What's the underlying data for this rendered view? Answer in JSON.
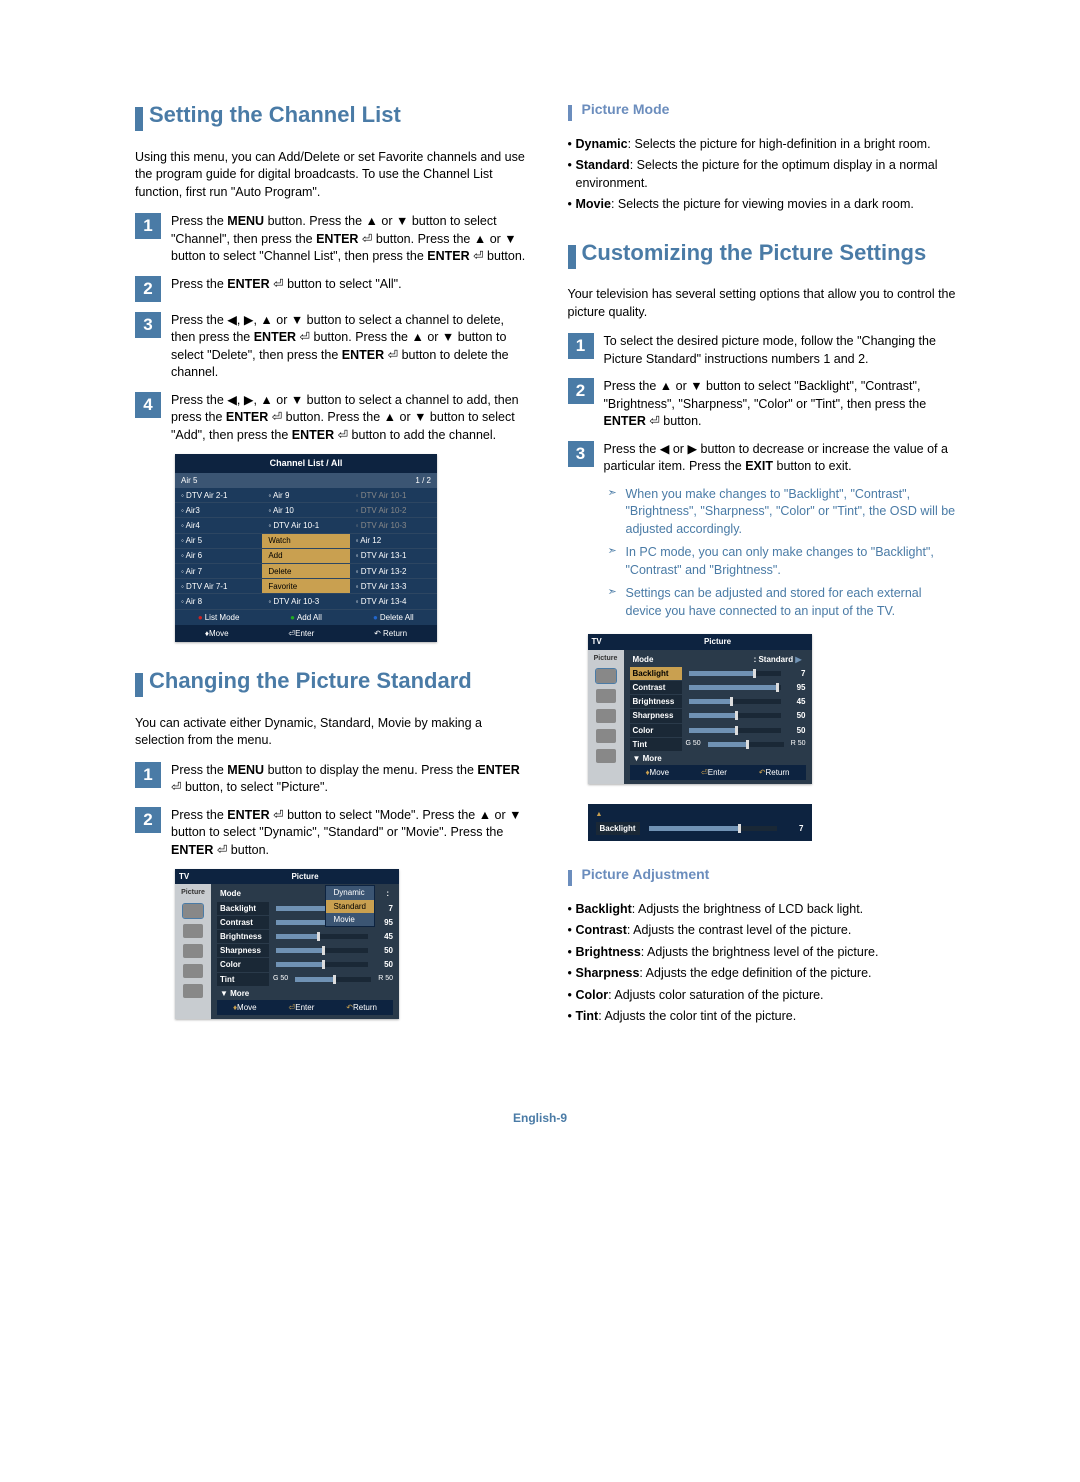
{
  "footer": "English-9",
  "left": {
    "s1": {
      "title": "Setting the Channel List",
      "intro": "Using this menu, you can Add/Delete or set Favorite channels and use the program guide for digital broadcasts. To use the Channel List function, first run \"Auto Program\".",
      "steps": [
        "Press the MENU button. Press the ▲ or ▼ button to select \"Channel\", then press the ENTER ⏎ button. Press the ▲ or ▼ button to select \"Channel List\", then press the ENTER ⏎ button.",
        "Press the ENTER ⏎ button to select \"All\".",
        "Press the ◀, ▶, ▲ or ▼ button to select a channel to delete, then press the ENTER ⏎ button. Press the ▲ or ▼ button to select \"Delete\", then press the ENTER ⏎ button to delete the channel.",
        "Press the ◀, ▶, ▲ or ▼ button to select a channel to add, then press the ENTER ⏎ button. Press the ▲ or ▼ button to select \"Add\", then press the ENTER ⏎ button to add the channel."
      ],
      "osd": {
        "title": "Channel List / All",
        "sub": "Air 5",
        "page": "1 / 2",
        "cols": [
          [
            "DTV Air 2-1",
            "Air3",
            "Air4",
            "Air 5",
            "Air 6",
            "Air 7",
            "DTV Air 7-1",
            "Air 8"
          ],
          [
            "Air 9",
            "Air 10",
            "DTV Air 10-1",
            "Watch",
            "Add",
            "Delete",
            "Favorite",
            "DTV Air 10-3"
          ],
          [
            "DTV Air 10-1",
            "DTV Air 10-2",
            "DTV Air 10-3",
            "Air 12",
            "DTV Air 13-1",
            "DTV Air 13-2",
            "DTV Air 13-3",
            "DTV Air 13-4"
          ]
        ],
        "btns": [
          "List Mode",
          "Add All",
          "Delete All"
        ],
        "foot": [
          "Move",
          "Enter",
          "Return"
        ]
      }
    },
    "s2": {
      "title": "Changing the Picture Standard",
      "intro": "You can activate either Dynamic, Standard, Movie by making a selection from the menu.",
      "steps": [
        "Press the MENU button to display the menu. Press the ENTER ⏎ button, to select \"Picture\".",
        "Press the ENTER ⏎ button to select \"Mode\". Press the ▲ or ▼ button to select \"Dynamic\", \"Standard\" or \"Movie\". Press the ENTER ⏎ button."
      ],
      "osd": {
        "tv": "TV",
        "title": "Picture",
        "side_label": "Picture",
        "mode_label": "Mode",
        "dropdown": [
          "Dynamic",
          "Standard",
          "Movie"
        ],
        "rows": [
          {
            "label": "Backlight",
            "val": 7,
            "pct": 70
          },
          {
            "label": "Contrast",
            "val": 95,
            "pct": 95
          },
          {
            "label": "Brightness",
            "val": 45,
            "pct": 45
          },
          {
            "label": "Sharpness",
            "val": 50,
            "pct": 50
          },
          {
            "label": "Color",
            "val": 50,
            "pct": 50
          },
          {
            "label": "Tint",
            "left": "G 50",
            "right": "R 50",
            "pct": 50
          }
        ],
        "more": "▼ More",
        "foot": [
          "Move",
          "Enter",
          "Return"
        ]
      }
    }
  },
  "right": {
    "s1": {
      "title": "Picture Mode",
      "items": [
        {
          "b": "Dynamic",
          "t": ": Selects the picture for high-definition in a bright room."
        },
        {
          "b": "Standard",
          "t": ": Selects the picture for the optimum display in a normal environment."
        },
        {
          "b": "Movie",
          "t": ": Selects the picture for viewing movies in a dark room."
        }
      ]
    },
    "s2": {
      "title": "Customizing the Picture Settings",
      "intro": "Your television has several setting options that allow you to control the picture quality.",
      "steps": [
        "To select the desired picture mode, follow the \"Changing the Picture Standard\" instructions numbers 1 and 2.",
        "Press the ▲ or ▼ button to select \"Backlight\", \"Contrast\", \"Brightness\", \"Sharpness\", \"Color\" or \"Tint\", then press the ENTER ⏎ button.",
        "Press the ◀ or ▶ button to decrease or increase the value of a particular item. Press the EXIT button to exit."
      ],
      "notes": [
        "When you make changes to \"Backlight\", \"Contrast\", \"Brightness\", \"Sharpness\", \"Color\" or \"Tint\", the OSD will be adjusted accordingly.",
        "In PC mode, you can only make changes to \"Backlight\", \"Contrast\" and \"Brightness\".",
        "Settings can be adjusted and stored for each external device you have connected to an input of the TV."
      ],
      "osd": {
        "tv": "TV",
        "title": "Picture",
        "side_label": "Picture",
        "mode_label": "Mode",
        "mode_value": ": Standard",
        "rows": [
          {
            "label": "Backlight",
            "val": 7,
            "pct": 70,
            "hl": true
          },
          {
            "label": "Contrast",
            "val": 95,
            "pct": 95
          },
          {
            "label": "Brightness",
            "val": 45,
            "pct": 45
          },
          {
            "label": "Sharpness",
            "val": 50,
            "pct": 50
          },
          {
            "label": "Color",
            "val": 50,
            "pct": 50
          },
          {
            "label": "Tint",
            "left": "G 50",
            "right": "R 50",
            "pct": 50
          }
        ],
        "more": "▼ More",
        "foot": [
          "Move",
          "Enter",
          "Return"
        ],
        "backlight": {
          "label": "Backlight",
          "val": 7,
          "pct": 70
        }
      }
    },
    "s3": {
      "title": "Picture Adjustment",
      "items": [
        {
          "b": "Backlight",
          "t": ": Adjusts the brightness of LCD back light."
        },
        {
          "b": "Contrast",
          "t": ": Adjusts the contrast level of the picture."
        },
        {
          "b": "Brightness",
          "t": ": Adjusts the brightness level of the picture."
        },
        {
          "b": "Sharpness",
          "t": ": Adjusts the edge definition of the picture."
        },
        {
          "b": "Color",
          "t": ": Adjusts color saturation of the picture."
        },
        {
          "b": "Tint",
          "t": ": Adjusts the color tint of the picture."
        }
      ]
    }
  }
}
